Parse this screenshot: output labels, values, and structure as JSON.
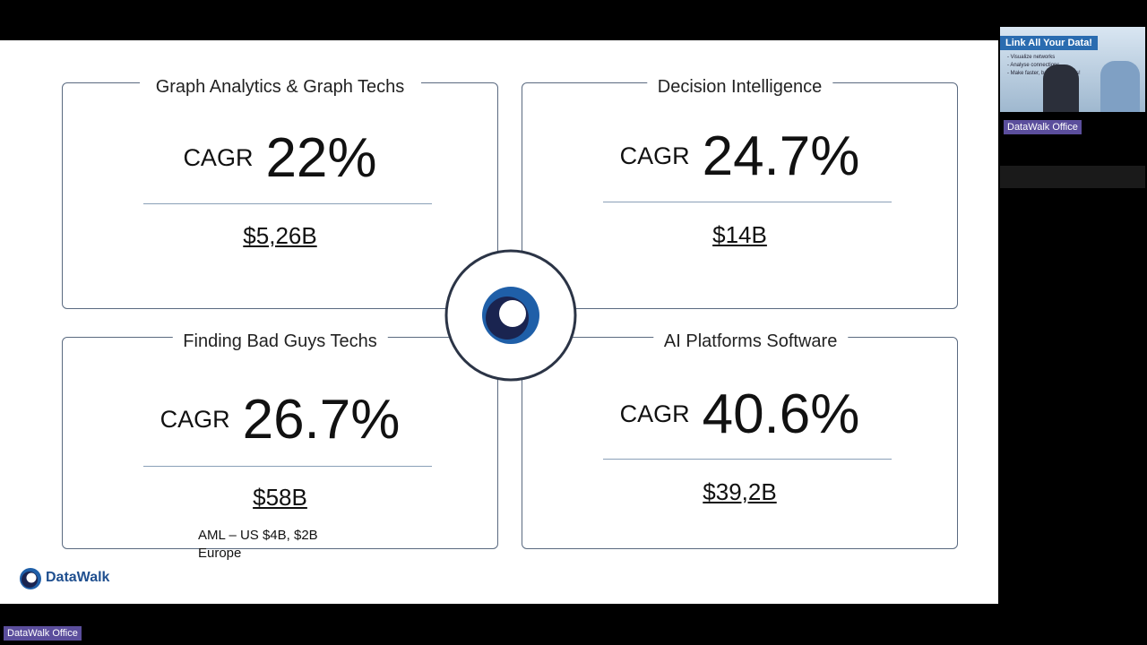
{
  "slide": {
    "quadrants": [
      {
        "title": "Graph Analytics & Graph Techs",
        "cagr_label": "CAGR",
        "cagr": "22%",
        "market_size": "$5,26B"
      },
      {
        "title": "Decision Intelligence",
        "cagr_label": "CAGR",
        "cagr": "24.7%",
        "market_size": "$14B"
      },
      {
        "title": "Finding Bad Guys Techs",
        "cagr_label": "CAGR",
        "cagr": "26.7%",
        "market_size": "$58B",
        "note": "AML – US $4B, $2B Europe"
      },
      {
        "title": "AI Platforms Software",
        "cagr_label": "CAGR",
        "cagr": "40.6%",
        "market_size": "$39,2B"
      }
    ],
    "brand": "DataWalk"
  },
  "video": {
    "thumbnail_title": "Link All Your Data!",
    "thumbnail_bullets": [
      "- Visualize networks",
      "- Analyse connections",
      "- Make faster, better decisions!"
    ],
    "participant_label": "DataWalk Office"
  },
  "footer_label": "DataWalk Office"
}
